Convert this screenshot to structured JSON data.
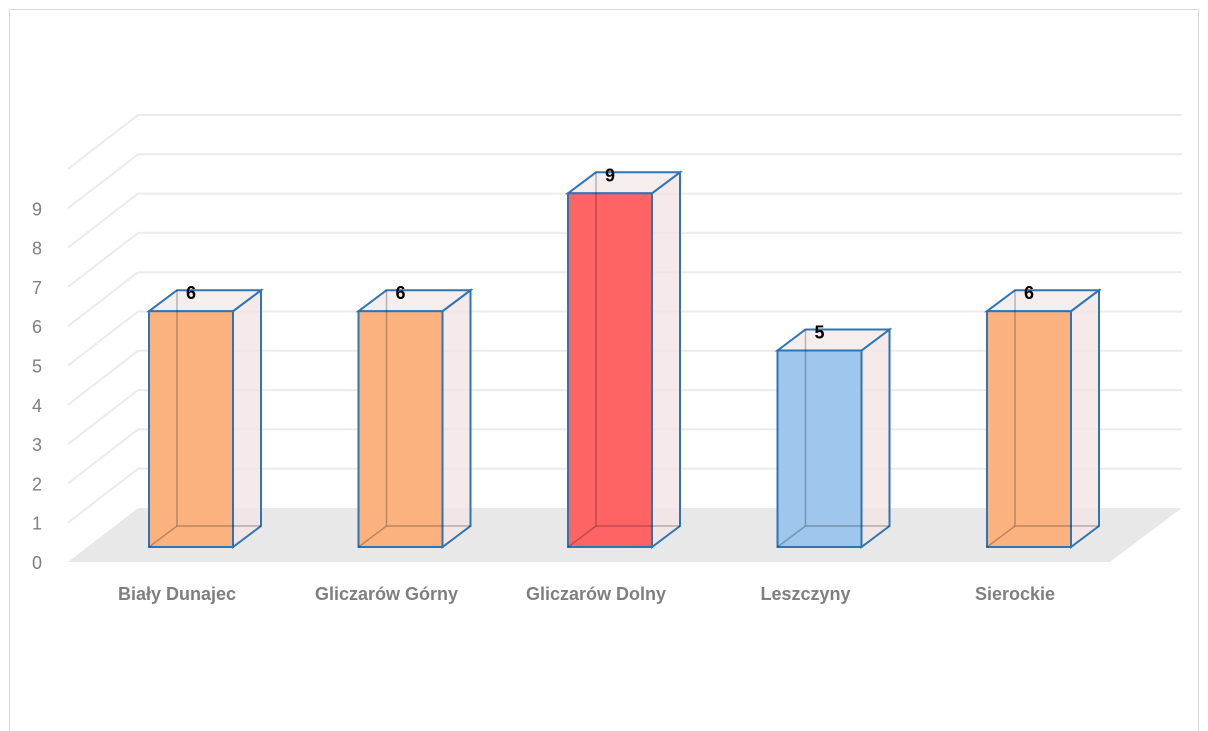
{
  "chart_data": {
    "type": "bar",
    "style": "3d-column",
    "categories": [
      "Biały Dunajec",
      "Gliczarów Górny",
      "Gliczarów Dolny",
      "Leszczyny",
      "Sierockie"
    ],
    "values": [
      6,
      6,
      9,
      5,
      6
    ],
    "bar_colors": [
      "#fbb27f",
      "#fbb27f",
      "#ff6464",
      "#9fc6ec",
      "#fbb27f"
    ],
    "edge_color": "#2e75b6",
    "ylim": [
      0,
      9
    ],
    "yticks": [
      "0",
      "1",
      "2",
      "3",
      "4",
      "5",
      "6",
      "7",
      "8",
      "9"
    ],
    "data_labels": [
      "6",
      "6",
      "9",
      "5",
      "6"
    ],
    "grid": true,
    "legend": "none",
    "title": "",
    "xlabel": "",
    "ylabel": ""
  }
}
